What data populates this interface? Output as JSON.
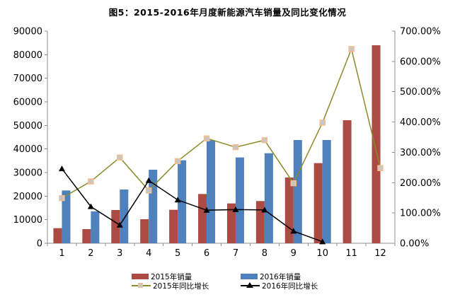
{
  "title": "图5：2015-2016年月度新能源汽车销量及同比变化情况",
  "colors": {
    "bar_2015": "#AC4A44",
    "bar_2016": "#4F81BD",
    "line_2015": "#8A8B2B",
    "marker_2015_fill": "#C6C6C6",
    "marker_2015_border": "#F5BE8E",
    "line_2016": "#000000",
    "axis": "#8C8C8C",
    "text": "#000000"
  },
  "chart_data": {
    "type": "combo-bar-line",
    "title": "图5：2015-2016年月度新能源汽车销量及同比变化情况",
    "categories": [
      "1",
      "2",
      "3",
      "4",
      "5",
      "6",
      "7",
      "8",
      "9",
      "10",
      "11",
      "12"
    ],
    "grid": false,
    "legend_position": "bottom",
    "left_axis": {
      "min": 0,
      "max": 90000,
      "step": 10000,
      "tick_labels": [
        "0",
        "10000",
        "20000",
        "30000",
        "40000",
        "50000",
        "60000",
        "70000",
        "80000",
        "90000"
      ]
    },
    "right_axis": {
      "min": 0,
      "max": 700,
      "step": 100,
      "tick_labels": [
        "0.00%",
        "100.00%",
        "200.00%",
        "300.00%",
        "400.00%",
        "500.00%",
        "600.00%",
        "700.00%"
      ]
    },
    "series": [
      {
        "name": "2015年销量",
        "type": "bar",
        "axis": "left",
        "color_key": "bar_2015",
        "values": [
          6400,
          6000,
          14100,
          10200,
          14200,
          20900,
          16900,
          17900,
          27900,
          34000,
          52200,
          84000
        ]
      },
      {
        "name": "2016年销量",
        "type": "bar",
        "axis": "left",
        "color_key": "bar_2016",
        "values": [
          22400,
          13500,
          22800,
          31200,
          35200,
          43700,
          36400,
          38200,
          43800,
          43800,
          null,
          null
        ]
      },
      {
        "name": "2015年同比增长",
        "type": "line",
        "axis": "right",
        "marker": "square",
        "color_key": "line_2015",
        "values_pct": [
          149,
          204,
          283,
          174,
          271,
          346,
          317,
          340,
          198,
          398,
          641,
          248
        ]
      },
      {
        "name": "2016年同比增长",
        "type": "line",
        "axis": "right",
        "marker": "triangle",
        "color_key": "line_2016",
        "values_pct": [
          246,
          121,
          60,
          207,
          143,
          109,
          111,
          110,
          40,
          5,
          null,
          null
        ]
      }
    ]
  }
}
